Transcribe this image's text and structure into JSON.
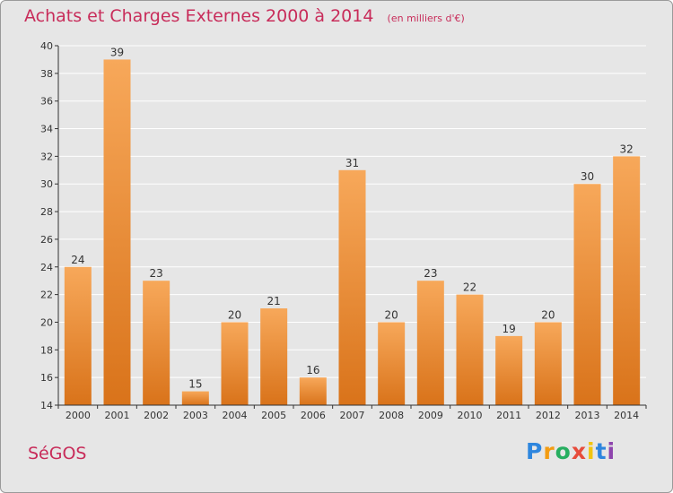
{
  "title": "Achats et Charges Externes 2000 à 2014",
  "subtitle": "(en milliers d'€)",
  "footer_left": "SéGOS",
  "logo": {
    "letters": [
      "P",
      "r",
      "o",
      "x",
      "i",
      "t",
      "i"
    ],
    "colors": [
      "#2e86de",
      "#f39c12",
      "#27ae60",
      "#e74c3c",
      "#f1c40f",
      "#2e86de",
      "#8e44ad"
    ]
  },
  "colors": {
    "bar_light": "#f7a85a",
    "bar_dark": "#d9731a",
    "title": "#c82c5a",
    "grid": "#ffffff",
    "axis": "#333333"
  },
  "chart_data": {
    "type": "bar",
    "categories": [
      "2000",
      "2001",
      "2002",
      "2003",
      "2004",
      "2005",
      "2006",
      "2007",
      "2008",
      "2009",
      "2010",
      "2011",
      "2012",
      "2013",
      "2014"
    ],
    "values": [
      24,
      39,
      23,
      15,
      20,
      21,
      16,
      31,
      20,
      23,
      22,
      19,
      20,
      30,
      32
    ],
    "ylim": [
      14,
      40
    ],
    "yticks": [
      14,
      16,
      18,
      20,
      22,
      24,
      26,
      28,
      30,
      32,
      34,
      36,
      38,
      40
    ],
    "grid": true,
    "title": "Achats et Charges Externes 2000 à 2014",
    "xlabel": "",
    "ylabel": ""
  }
}
